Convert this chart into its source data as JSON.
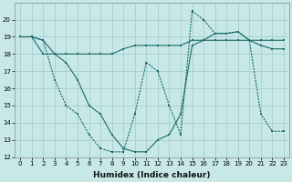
{
  "background_color": "#c8e8e8",
  "grid_color": "#a0c8c8",
  "line_color": "#1a6b6b",
  "xlabel": "Humidex (Indice chaleur)",
  "ylim": [
    12,
    21
  ],
  "xlim": [
    -0.5,
    23.5
  ],
  "yticks": [
    12,
    13,
    14,
    15,
    16,
    17,
    18,
    19,
    20
  ],
  "xticks": [
    0,
    1,
    2,
    3,
    4,
    5,
    6,
    7,
    8,
    9,
    10,
    11,
    12,
    13,
    14,
    15,
    16,
    17,
    18,
    19,
    20,
    21,
    22,
    23
  ],
  "line1_x": [
    0,
    1,
    2,
    3,
    4,
    5,
    6,
    7,
    8,
    9,
    10,
    11,
    12,
    13,
    14,
    15,
    16,
    17,
    18,
    19,
    20,
    21,
    22,
    23
  ],
  "line1_y": [
    19.0,
    19.0,
    18.0,
    18.0,
    18.0,
    18.0,
    18.0,
    18.0,
    18.0,
    18.3,
    18.5,
    18.5,
    18.5,
    18.5,
    18.5,
    18.8,
    18.8,
    18.8,
    18.8,
    18.8,
    18.8,
    18.8,
    18.8,
    18.8
  ],
  "line2_x": [
    0,
    1,
    2,
    3,
    4,
    5,
    6,
    7,
    8,
    9,
    10,
    11,
    12,
    13,
    14,
    15,
    16,
    17,
    18,
    19,
    20,
    21,
    22,
    23
  ],
  "line2_y": [
    19.0,
    19.0,
    18.8,
    18.0,
    17.5,
    16.5,
    15.0,
    14.5,
    13.3,
    12.5,
    12.3,
    12.3,
    13.0,
    13.3,
    14.5,
    18.5,
    18.8,
    19.2,
    19.2,
    19.3,
    18.8,
    18.5,
    18.3,
    18.3
  ],
  "line3_x": [
    0,
    1,
    2,
    3,
    4,
    5,
    6,
    7,
    8,
    9,
    10,
    11,
    12,
    13,
    14,
    15,
    16,
    17,
    18,
    19,
    20,
    21,
    22,
    23
  ],
  "line3_y": [
    19.0,
    19.0,
    18.8,
    16.5,
    15.0,
    14.5,
    13.3,
    12.5,
    12.3,
    12.3,
    14.5,
    17.5,
    17.0,
    15.0,
    13.3,
    20.5,
    20.0,
    19.2,
    19.2,
    19.3,
    18.8,
    14.5,
    13.5,
    13.5
  ],
  "tick_fontsize": 5.0,
  "xlabel_fontsize": 6.5
}
